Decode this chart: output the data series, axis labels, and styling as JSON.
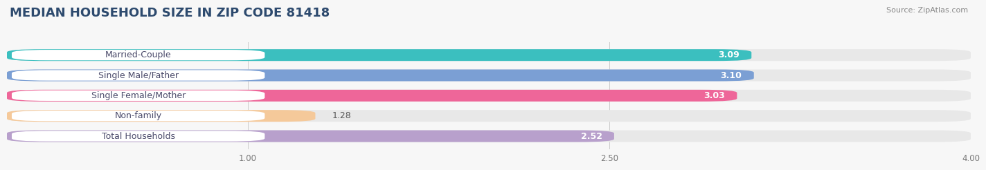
{
  "title": "MEDIAN HOUSEHOLD SIZE IN ZIP CODE 81418",
  "source": "Source: ZipAtlas.com",
  "categories": [
    "Married-Couple",
    "Single Male/Father",
    "Single Female/Mother",
    "Non-family",
    "Total Households"
  ],
  "values": [
    3.09,
    3.1,
    3.03,
    1.28,
    2.52
  ],
  "value_labels": [
    "3.09",
    "3.10",
    "3.03",
    "1.28",
    "2.52"
  ],
  "bar_colors": [
    "#3BBFBF",
    "#7B9FD4",
    "#EE6699",
    "#F5C99A",
    "#B8A0CC"
  ],
  "xlim_min": 0,
  "xlim_max": 4.0,
  "xticks": [
    1.0,
    2.5,
    4.0
  ],
  "xtick_labels": [
    "1.00",
    "2.50",
    "4.00"
  ],
  "title_fontsize": 13,
  "label_fontsize": 9,
  "value_fontsize": 9,
  "source_fontsize": 8,
  "bg_color": "#f7f7f7",
  "bar_bg_color": "#e8e8e8",
  "label_bg_color": "#ffffff",
  "bar_height": 0.58,
  "rounding": 0.15
}
